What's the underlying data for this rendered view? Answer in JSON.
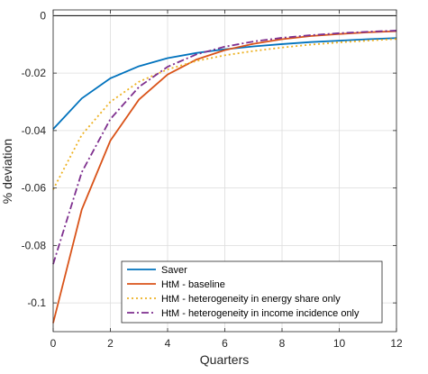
{
  "chart_data": {
    "type": "line",
    "xlabel": "Quarters",
    "ylabel": "% deviation",
    "xlim": [
      0,
      12
    ],
    "ylim": [
      -0.11,
      0.002
    ],
    "grid": true,
    "legend_position": "bottom-right",
    "x": [
      0,
      1,
      2,
      3,
      4,
      5,
      6,
      7,
      8,
      9,
      10,
      11,
      12
    ],
    "xticks": [
      "0",
      "2",
      "4",
      "6",
      "8",
      "10",
      "12"
    ],
    "yticks": [
      "0",
      "-0.02",
      "-0.04",
      "-0.06",
      "-0.08",
      "-0.1"
    ],
    "series": [
      {
        "name": "Saver",
        "color": "#0072BD",
        "style": "solid",
        "values": [
          -0.0395,
          -0.0288,
          -0.0218,
          -0.0176,
          -0.0148,
          -0.013,
          -0.0117,
          -0.0107,
          -0.0099,
          -0.0092,
          -0.0087,
          -0.0082,
          -0.0078
        ]
      },
      {
        "name": "HtM - baseline",
        "color": "#D95319",
        "style": "solid",
        "values": [
          -0.107,
          -0.0675,
          -0.0435,
          -0.0292,
          -0.0205,
          -0.0153,
          -0.012,
          -0.0098,
          -0.0082,
          -0.0071,
          -0.0064,
          -0.0058,
          -0.0054
        ]
      },
      {
        "name": "HtM - heterogeneity in energy share only",
        "color": "#EDB120",
        "style": "dotted",
        "values": [
          -0.0605,
          -0.0415,
          -0.03,
          -0.023,
          -0.0187,
          -0.0158,
          -0.0138,
          -0.0123,
          -0.0111,
          -0.0101,
          -0.0093,
          -0.0087,
          -0.0081
        ]
      },
      {
        "name": "HtM - heterogeneity in income incidence only",
        "color": "#7E2F8E",
        "style": "dashdot",
        "values": [
          -0.0865,
          -0.0545,
          -0.036,
          -0.0248,
          -0.0178,
          -0.0135,
          -0.0108,
          -0.009,
          -0.0077,
          -0.0068,
          -0.0061,
          -0.0056,
          -0.0052
        ]
      }
    ]
  }
}
